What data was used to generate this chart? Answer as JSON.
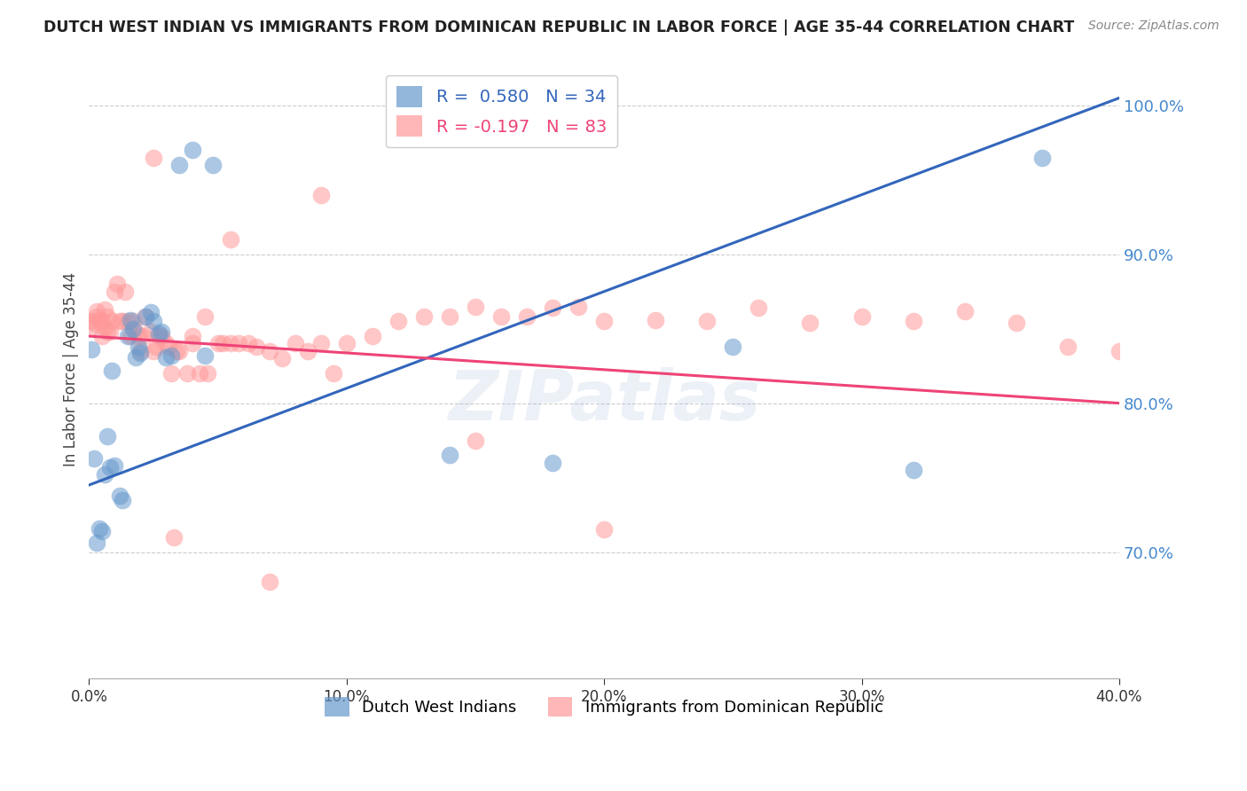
{
  "title": "DUTCH WEST INDIAN VS IMMIGRANTS FROM DOMINICAN REPUBLIC IN LABOR FORCE | AGE 35-44 CORRELATION CHART",
  "source": "Source: ZipAtlas.com",
  "ylabel": "In Labor Force | Age 35-44",
  "xlim": [
    0.0,
    0.4
  ],
  "ylim": [
    0.615,
    1.03
  ],
  "yticks": [
    0.7,
    0.8,
    0.9,
    1.0
  ],
  "xticks": [
    0.0,
    0.1,
    0.2,
    0.3,
    0.4
  ],
  "blue_label": "Dutch West Indians",
  "pink_label": "Immigrants from Dominican Republic",
  "blue_R": 0.58,
  "blue_N": 34,
  "pink_R": -0.197,
  "pink_N": 83,
  "blue_color": "#6699CC",
  "pink_color": "#FF9999",
  "blue_line_color": "#3366BB",
  "pink_line_color": "#EE4477",
  "watermark": "ZIPatlas",
  "blue_line_x0": 0.0,
  "blue_line_y0": 0.745,
  "blue_line_x1": 0.4,
  "blue_line_y1": 1.005,
  "pink_line_x0": 0.0,
  "pink_line_y0": 0.845,
  "pink_line_x1": 0.4,
  "pink_line_y1": 0.8,
  "blue_x": [
    0.001,
    0.002,
    0.003,
    0.004,
    0.005,
    0.006,
    0.007,
    0.008,
    0.009,
    0.01,
    0.012,
    0.013,
    0.015,
    0.016,
    0.017,
    0.018,
    0.019,
    0.02,
    0.022,
    0.024,
    0.025,
    0.027,
    0.028,
    0.03,
    0.032,
    0.035,
    0.04,
    0.045,
    0.048,
    0.14,
    0.18,
    0.25,
    0.32,
    0.37
  ],
  "blue_y": [
    0.836,
    0.763,
    0.706,
    0.716,
    0.714,
    0.752,
    0.778,
    0.757,
    0.822,
    0.758,
    0.738,
    0.735,
    0.845,
    0.856,
    0.85,
    0.831,
    0.838,
    0.834,
    0.858,
    0.861,
    0.855,
    0.847,
    0.848,
    0.831,
    0.832,
    0.96,
    0.97,
    0.832,
    0.96,
    0.765,
    0.76,
    0.838,
    0.755,
    0.965
  ],
  "pink_x": [
    0.001,
    0.001,
    0.002,
    0.003,
    0.003,
    0.004,
    0.005,
    0.005,
    0.006,
    0.006,
    0.007,
    0.007,
    0.008,
    0.009,
    0.01,
    0.011,
    0.012,
    0.013,
    0.014,
    0.015,
    0.016,
    0.017,
    0.018,
    0.019,
    0.02,
    0.021,
    0.022,
    0.024,
    0.025,
    0.026,
    0.027,
    0.028,
    0.03,
    0.031,
    0.032,
    0.034,
    0.035,
    0.038,
    0.04,
    0.043,
    0.045,
    0.046,
    0.05,
    0.052,
    0.055,
    0.058,
    0.062,
    0.065,
    0.07,
    0.075,
    0.08,
    0.085,
    0.09,
    0.095,
    0.1,
    0.11,
    0.12,
    0.13,
    0.14,
    0.15,
    0.16,
    0.17,
    0.18,
    0.19,
    0.2,
    0.22,
    0.24,
    0.26,
    0.28,
    0.3,
    0.32,
    0.34,
    0.36,
    0.38,
    0.4,
    0.09,
    0.15,
    0.2,
    0.04,
    0.055,
    0.07,
    0.025,
    0.033
  ],
  "pink_y": [
    0.855,
    0.851,
    0.854,
    0.858,
    0.862,
    0.856,
    0.845,
    0.855,
    0.863,
    0.851,
    0.848,
    0.858,
    0.848,
    0.855,
    0.875,
    0.88,
    0.855,
    0.855,
    0.875,
    0.855,
    0.845,
    0.855,
    0.848,
    0.845,
    0.835,
    0.845,
    0.858,
    0.848,
    0.835,
    0.838,
    0.845,
    0.845,
    0.84,
    0.838,
    0.82,
    0.835,
    0.835,
    0.82,
    0.84,
    0.82,
    0.858,
    0.82,
    0.84,
    0.84,
    0.84,
    0.84,
    0.84,
    0.838,
    0.835,
    0.83,
    0.84,
    0.835,
    0.84,
    0.82,
    0.84,
    0.845,
    0.855,
    0.858,
    0.858,
    0.865,
    0.858,
    0.858,
    0.864,
    0.865,
    0.855,
    0.856,
    0.855,
    0.864,
    0.854,
    0.858,
    0.855,
    0.862,
    0.854,
    0.838,
    0.835,
    0.94,
    0.775,
    0.715,
    0.845,
    0.91,
    0.68,
    0.965,
    0.71
  ]
}
